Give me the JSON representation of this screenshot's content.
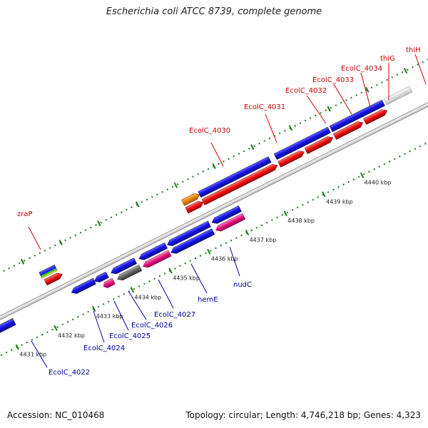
{
  "title": "Escherichia coli ATCC 8739, complete genome",
  "accession_text": "Accession: NC_010468",
  "summary_text": "Topology: circular; Length: 4,746,218 bp; Genes: 4,323",
  "kbp_ticks": [
    {
      "label": "4431 kbp",
      "pos": 4431
    },
    {
      "label": "4432 kbp",
      "pos": 4432
    },
    {
      "label": "4433 kbp",
      "pos": 4433
    },
    {
      "label": "4434 kbp",
      "pos": 4434
    },
    {
      "label": "4435 kbp",
      "pos": 4435
    },
    {
      "label": "4436 kbp",
      "pos": 4436
    },
    {
      "label": "4437 kbp",
      "pos": 4437
    },
    {
      "label": "4438 kbp",
      "pos": 4438
    },
    {
      "label": "4439 kbp",
      "pos": 4439
    },
    {
      "label": "4440 kbp",
      "pos": 4440
    }
  ],
  "forward_labels": [
    "zraP",
    "EcolC_4030",
    "EcolC_4031",
    "EcolC_4032",
    "EcolC_4033",
    "EcolC_4034",
    "thiG",
    "thiH"
  ],
  "reverse_labels": [
    "EcolC_4022",
    "EcolC_4024",
    "EcolC_4025",
    "EcolC_4026",
    "EcolC_4027",
    "hemE",
    "nudC"
  ],
  "colors": {
    "forward_label": "#cc0000",
    "reverse_label": "#0000aa",
    "cds_blue": "#1414e6",
    "cds_red": "#ee1111",
    "cds_pink": "#e8127e",
    "cds_orange": "#f08a00",
    "cds_gray": "#666666",
    "backbone": "#8a8a8a",
    "tick_green": "#1a7a1a"
  }
}
